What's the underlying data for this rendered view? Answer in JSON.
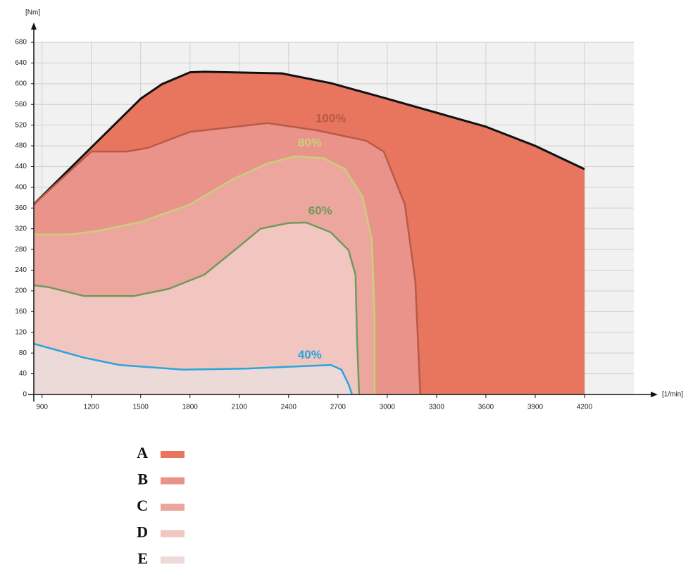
{
  "chart_data": {
    "type": "area",
    "y_label": "[Nm]",
    "x_label": "[1/min]",
    "xlim": [
      850,
      4500
    ],
    "xticks": [
      900,
      1200,
      1500,
      1800,
      2100,
      2400,
      2700,
      3000,
      3300,
      3600,
      3900,
      4200
    ],
    "ylim": [
      0,
      680
    ],
    "yticks": [
      0,
      40,
      80,
      120,
      160,
      200,
      240,
      280,
      320,
      360,
      400,
      440,
      480,
      520,
      560,
      600,
      640,
      680
    ],
    "grid": true,
    "series": [
      {
        "name": "A",
        "color": "#e8765f",
        "line_color": "#111111",
        "x": [
          849,
          1500,
          1629,
          1800,
          1886,
          2357,
          2657,
          3000,
          3300,
          3600,
          3900,
          4200
        ],
        "values": [
          367,
          571,
          599,
          622,
          623,
          620,
          601,
          571,
          544,
          517,
          480,
          435
        ]
      },
      {
        "name": "B",
        "color": "#e9938a",
        "line_color": "#b85a47",
        "label": "100%",
        "x": [
          849,
          1200,
          1414,
          1543,
          1800,
          2271,
          2571,
          2871,
          2979,
          3107,
          3171,
          3201
        ],
        "values": [
          367,
          469,
          469,
          476,
          507,
          524,
          510,
          490,
          469,
          367,
          218,
          0
        ]
      },
      {
        "name": "C",
        "color": "#eca69e",
        "line_color": "#c8d07a",
        "label": "80%",
        "x": [
          849,
          1071,
          1243,
          1500,
          1800,
          2057,
          2271,
          2443,
          2614,
          2743,
          2850,
          2906,
          2923,
          2923
        ],
        "values": [
          309,
          309,
          316,
          333,
          367,
          415,
          446,
          460,
          456,
          435,
          381,
          299,
          150,
          0
        ]
      },
      {
        "name": "D",
        "color": "#f1c5c0",
        "line_color": "#6f9a5c",
        "label": "60%",
        "x": [
          849,
          943,
          1157,
          1457,
          1671,
          1886,
          2100,
          2229,
          2400,
          2507,
          2657,
          2764,
          2807,
          2816,
          2829
        ],
        "values": [
          211,
          207,
          190,
          190,
          204,
          231,
          286,
          320,
          331,
          332,
          313,
          279,
          231,
          109,
          0
        ]
      },
      {
        "name": "E",
        "color": "#ecdad9",
        "line_color": "#2aa4dc",
        "label": "40%",
        "x": [
          849,
          986,
          1157,
          1371,
          1757,
          2143,
          2443,
          2657,
          2721,
          2764,
          2786
        ],
        "values": [
          98,
          86,
          71,
          57,
          48,
          50,
          54,
          57,
          48,
          20,
          0
        ]
      }
    ]
  }
}
